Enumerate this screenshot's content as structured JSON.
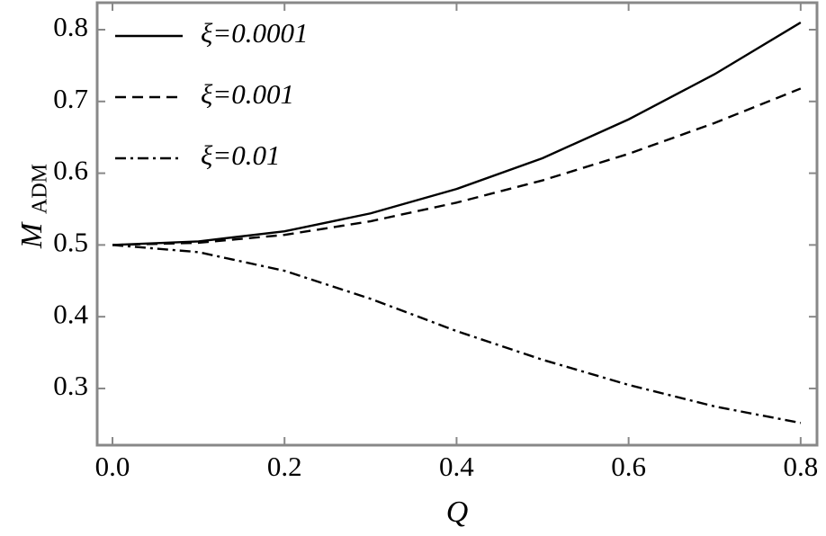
{
  "chart_data": {
    "type": "line",
    "xlabel": "Q",
    "ylabel": "M",
    "ylabel_sub": "ADM",
    "x": [
      0,
      0.1,
      0.2,
      0.3,
      0.4,
      0.5,
      0.6,
      0.7,
      0.8
    ],
    "series": [
      {
        "name": "ξ=0.0001",
        "color": "#000000",
        "style": "solid",
        "values": [
          0.5,
          0.505,
          0.519,
          0.544,
          0.578,
          0.621,
          0.675,
          0.738,
          0.81
        ]
      },
      {
        "name": "ξ=0.001",
        "color": "#000000",
        "style": "dashed",
        "values": [
          0.5,
          0.503,
          0.514,
          0.533,
          0.559,
          0.59,
          0.627,
          0.67,
          0.718
        ]
      },
      {
        "name": "ξ=0.01",
        "color": "#000000",
        "style": "dashdot",
        "values": [
          0.5,
          0.49,
          0.464,
          0.425,
          0.38,
          0.34,
          0.305,
          0.275,
          0.252
        ]
      }
    ],
    "xlim": [
      -0.0178,
      0.819
    ],
    "ylim": [
      0.221,
      0.8376
    ],
    "xticks": [
      {
        "value": 0,
        "label": "0.0"
      },
      0.2,
      0.4,
      0.6,
      0.8
    ],
    "yticks": [
      0.3,
      0.4,
      0.5,
      0.6,
      0.7,
      0.8
    ],
    "legend": "upper-left",
    "frame_color": "#888888"
  }
}
